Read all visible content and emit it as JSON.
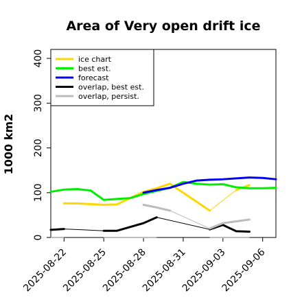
{
  "chart_data": {
    "type": "line",
    "title": "Area of Very open drift ice",
    "ylabel": "1000 km2",
    "xlabel": "",
    "ylim": [
      0,
      420
    ],
    "yticks": [
      0,
      100,
      200,
      300,
      400
    ],
    "xlim": [
      "2025-08-21",
      "2025-09-07"
    ],
    "xticks": [
      {
        "date": "2025-08-22",
        "label": "2025-08-22",
        "color": "#000000"
      },
      {
        "date": "2025-08-25",
        "label": "2025-08-25",
        "color": "#000000"
      },
      {
        "date": "2025-08-28",
        "label": "2025-08-28",
        "color": "#228B22"
      },
      {
        "date": "2025-08-31",
        "label": "2025-08-31",
        "color": "#000000"
      },
      {
        "date": "2025-09-03",
        "label": "2025-09-03",
        "color": "#000000"
      },
      {
        "date": "2025-09-06",
        "label": "2025-09-06",
        "color": "#000000"
      }
    ],
    "legend_position": "top-left",
    "grid": false,
    "series": [
      {
        "name": "ice chart",
        "color": "#FFD700",
        "width": 3,
        "points": [
          [
            "2025-08-22",
            76
          ],
          [
            "2025-08-23",
            76
          ],
          [
            "2025-08-25",
            73
          ],
          [
            "2025-08-26",
            74
          ],
          [
            "2025-08-28",
            102
          ],
          [
            "2025-08-29",
            110
          ],
          [
            "2025-08-30",
            120
          ],
          [
            "2025-09-02",
            60
          ],
          [
            "2025-09-04",
            106
          ],
          [
            "2025-09-05",
            117
          ]
        ],
        "gaps_thin": [
          [
            2,
            4
          ],
          [
            7,
            8
          ]
        ]
      },
      {
        "name": "best est.",
        "color": "#00EE00",
        "width": 3,
        "points": [
          [
            "2025-08-21",
            102
          ],
          [
            "2025-08-22",
            107
          ],
          [
            "2025-08-23",
            108
          ],
          [
            "2025-08-24",
            105
          ],
          [
            "2025-08-25",
            84
          ],
          [
            "2025-08-26",
            86
          ],
          [
            "2025-08-27",
            88
          ],
          [
            "2025-08-28",
            97
          ],
          [
            "2025-08-29",
            104
          ],
          [
            "2025-08-30",
            111
          ],
          [
            "2025-08-31",
            124
          ],
          [
            "2025-09-01",
            120
          ],
          [
            "2025-09-02",
            118
          ],
          [
            "2025-09-03",
            119
          ],
          [
            "2025-09-04",
            112
          ],
          [
            "2025-09-05",
            110
          ],
          [
            "2025-09-06",
            110
          ],
          [
            "2025-09-07",
            111
          ]
        ]
      },
      {
        "name": "forecast",
        "color": "#0000EE",
        "width": 3,
        "points": [
          [
            "2025-08-28",
            100
          ],
          [
            "2025-08-29",
            106
          ],
          [
            "2025-08-30",
            111
          ],
          [
            "2025-08-31",
            120
          ],
          [
            "2025-09-01",
            127
          ],
          [
            "2025-09-02",
            129
          ],
          [
            "2025-09-03",
            130
          ],
          [
            "2025-09-04",
            132
          ],
          [
            "2025-09-05",
            134
          ],
          [
            "2025-09-06",
            133
          ],
          [
            "2025-09-07",
            130
          ]
        ]
      },
      {
        "name": "overlap, best est.",
        "color": "#000000",
        "width": 3,
        "points": [
          [
            "2025-08-21",
            17
          ],
          [
            "2025-08-22",
            19
          ],
          [
            "2025-08-25",
            15
          ],
          [
            "2025-08-26",
            15
          ],
          [
            "2025-08-28",
            32
          ],
          [
            "2025-08-29",
            45
          ],
          [
            "2025-09-02",
            18
          ],
          [
            "2025-09-03",
            28
          ],
          [
            "2025-09-04",
            14
          ],
          [
            "2025-09-05",
            13
          ]
        ],
        "gaps_thin": [
          [
            1,
            2
          ],
          [
            5,
            6
          ]
        ]
      },
      {
        "name": "overlap, persist.",
        "color": "#BBBBBB",
        "width": 3,
        "points": [
          [
            "2025-08-28",
            73
          ],
          [
            "2025-08-29",
            67
          ],
          [
            "2025-08-30",
            60
          ],
          [
            "2025-09-02",
            20
          ],
          [
            "2025-09-03",
            32
          ],
          [
            "2025-09-05",
            40
          ]
        ],
        "gaps_thin": [
          [
            2,
            3
          ]
        ]
      },
      {
        "name": "",
        "color": "#BBBBBB",
        "width": 2,
        "legend": false,
        "segments": [
          [
            [
              "2025-08-21",
              0
            ],
            [
              "2025-08-22",
              0
            ]
          ],
          [
            [
              "2025-08-25",
              0
            ],
            [
              "2025-08-29",
              0
            ]
          ],
          [
            [
              "2025-09-02",
              0
            ],
            [
              "2025-09-05",
              0
            ]
          ]
        ]
      }
    ]
  }
}
